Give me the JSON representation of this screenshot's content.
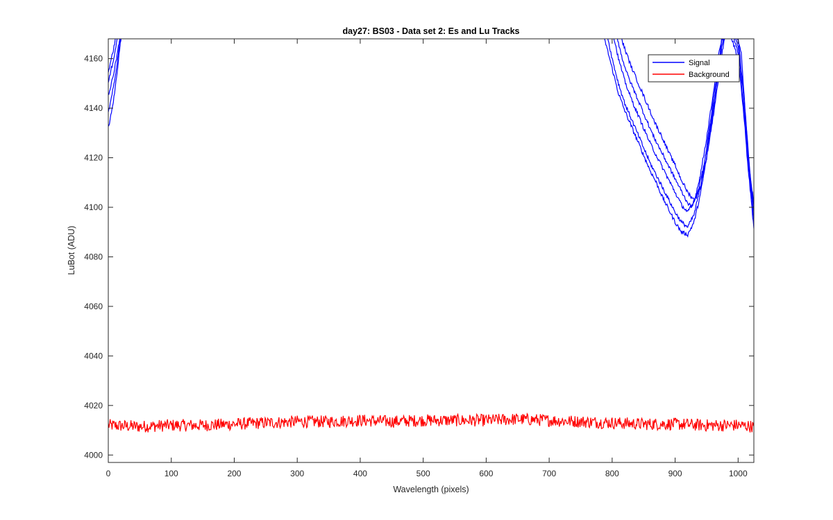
{
  "chart_data": {
    "type": "line",
    "title": "day27: BS03 - Data set 2: Es and Lu Tracks",
    "xlabel": "Wavelength (pixels)",
    "ylabel": "LuBot (ADU)",
    "xlim": [
      0,
      1025
    ],
    "ylim": [
      3997,
      4168
    ],
    "xticks": [
      0,
      100,
      200,
      300,
      400,
      500,
      600,
      700,
      800,
      900,
      1000
    ],
    "yticks": [
      4000,
      4020,
      4040,
      4060,
      4080,
      4100,
      4120,
      4140,
      4160
    ],
    "grid": false,
    "legend": {
      "position": "top-right",
      "entries": [
        "Signal",
        "Background"
      ]
    },
    "colors": {
      "Signal": "#0000ff",
      "Background": "#ff0000"
    },
    "series": [
      {
        "name": "Signal",
        "color": "#0000ff",
        "tracks": [
          {
            "x": [
              0,
              5,
              10,
              15,
              20,
              22,
              780,
              790,
              800,
              810,
              820,
              830,
              840,
              850,
              860,
              870,
              880,
              890,
              900,
              910,
              920,
              930,
              940,
              950,
              960,
              970,
              975,
              985,
              1000,
              1010,
              1015,
              1020,
              1025
            ],
            "y": [
              4132,
              4138,
              4146,
              4157,
              4168,
              4172,
              4172,
              4166,
              4156,
              4146,
              4139,
              4133,
              4127,
              4121,
              4115,
              4110,
              4104,
              4099,
              4094,
              4090,
              4089,
              4094,
              4105,
              4120,
              4138,
              4158,
              4172,
              4172,
              4160,
              4135,
              4118,
              4105,
              4091
            ]
          },
          {
            "x": [
              0,
              5,
              10,
              15,
              20,
              22,
              790,
              800,
              810,
              820,
              830,
              840,
              850,
              860,
              870,
              880,
              890,
              900,
              910,
              920,
              930,
              940,
              950,
              960,
              970,
              980,
              990,
              1000,
              1010,
              1015,
              1020,
              1025
            ],
            "y": [
              4138,
              4144,
              4151,
              4160,
              4170,
              4172,
              4172,
              4160,
              4150,
              4142,
              4136,
              4130,
              4124,
              4118,
              4113,
              4108,
              4103,
              4098,
              4094,
              4092,
              4097,
              4108,
              4124,
              4142,
              4160,
              4172,
              4172,
              4162,
              4138,
              4121,
              4108,
              4095
            ]
          },
          {
            "x": [
              0,
              5,
              10,
              15,
              20,
              22,
              800,
              810,
              820,
              830,
              840,
              850,
              860,
              870,
              880,
              890,
              900,
              910,
              920,
              930,
              940,
              950,
              960,
              970,
              980,
              990,
              1000,
              1010,
              1015,
              1020,
              1025
            ],
            "y": [
              4145,
              4150,
              4156,
              4163,
              4171,
              4172,
              4172,
              4160,
              4151,
              4144,
              4138,
              4132,
              4126,
              4121,
              4116,
              4111,
              4106,
              4101,
              4098,
              4102,
              4113,
              4128,
              4145,
              4163,
              4172,
              4172,
              4165,
              4142,
              4124,
              4110,
              4098
            ]
          },
          {
            "x": [
              0,
              5,
              10,
              15,
              18,
              805,
              815,
              825,
              835,
              845,
              855,
              865,
              875,
              885,
              895,
              905,
              915,
              925,
              935,
              945,
              955,
              965,
              975,
              985,
              995,
              1005,
              1012,
              1018,
              1025
            ],
            "y": [
              4150,
              4156,
              4162,
              4169,
              4172,
              4172,
              4161,
              4153,
              4147,
              4141,
              4135,
              4129,
              4124,
              4119,
              4114,
              4109,
              4104,
              4100,
              4105,
              4116,
              4131,
              4148,
              4166,
              4172,
              4172,
              4162,
              4136,
              4116,
              4101
            ]
          },
          {
            "x": [
              0,
              5,
              10,
              14,
              810,
              820,
              830,
              840,
              850,
              860,
              870,
              880,
              890,
              900,
              910,
              920,
              930,
              940,
              950,
              960,
              970,
              980,
              990,
              1000,
              1008,
              1015,
              1020,
              1025
            ],
            "y": [
              4155,
              4160,
              4166,
              4172,
              4172,
              4164,
              4157,
              4151,
              4145,
              4139,
              4133,
              4128,
              4122,
              4117,
              4111,
              4106,
              4103,
              4108,
              4120,
              4136,
              4154,
              4172,
              4172,
              4168,
              4148,
              4125,
              4110,
              4100
            ]
          }
        ]
      },
      {
        "name": "Background",
        "color": "#ff0000",
        "x": [
          0,
          50,
          100,
          150,
          200,
          250,
          300,
          350,
          400,
          450,
          500,
          550,
          600,
          650,
          700,
          750,
          800,
          850,
          900,
          950,
          1000,
          1025
        ],
        "y": [
          4012,
          4011.5,
          4012,
          4012,
          4012.5,
          4013,
          4013.5,
          4013.5,
          4014,
          4013.5,
          4014,
          4014,
          4014,
          4014.5,
          4014,
          4013.5,
          4013,
          4012.5,
          4012.5,
          4012,
          4012,
          4011.5
        ],
        "noise_amplitude": 2.5
      }
    ]
  }
}
